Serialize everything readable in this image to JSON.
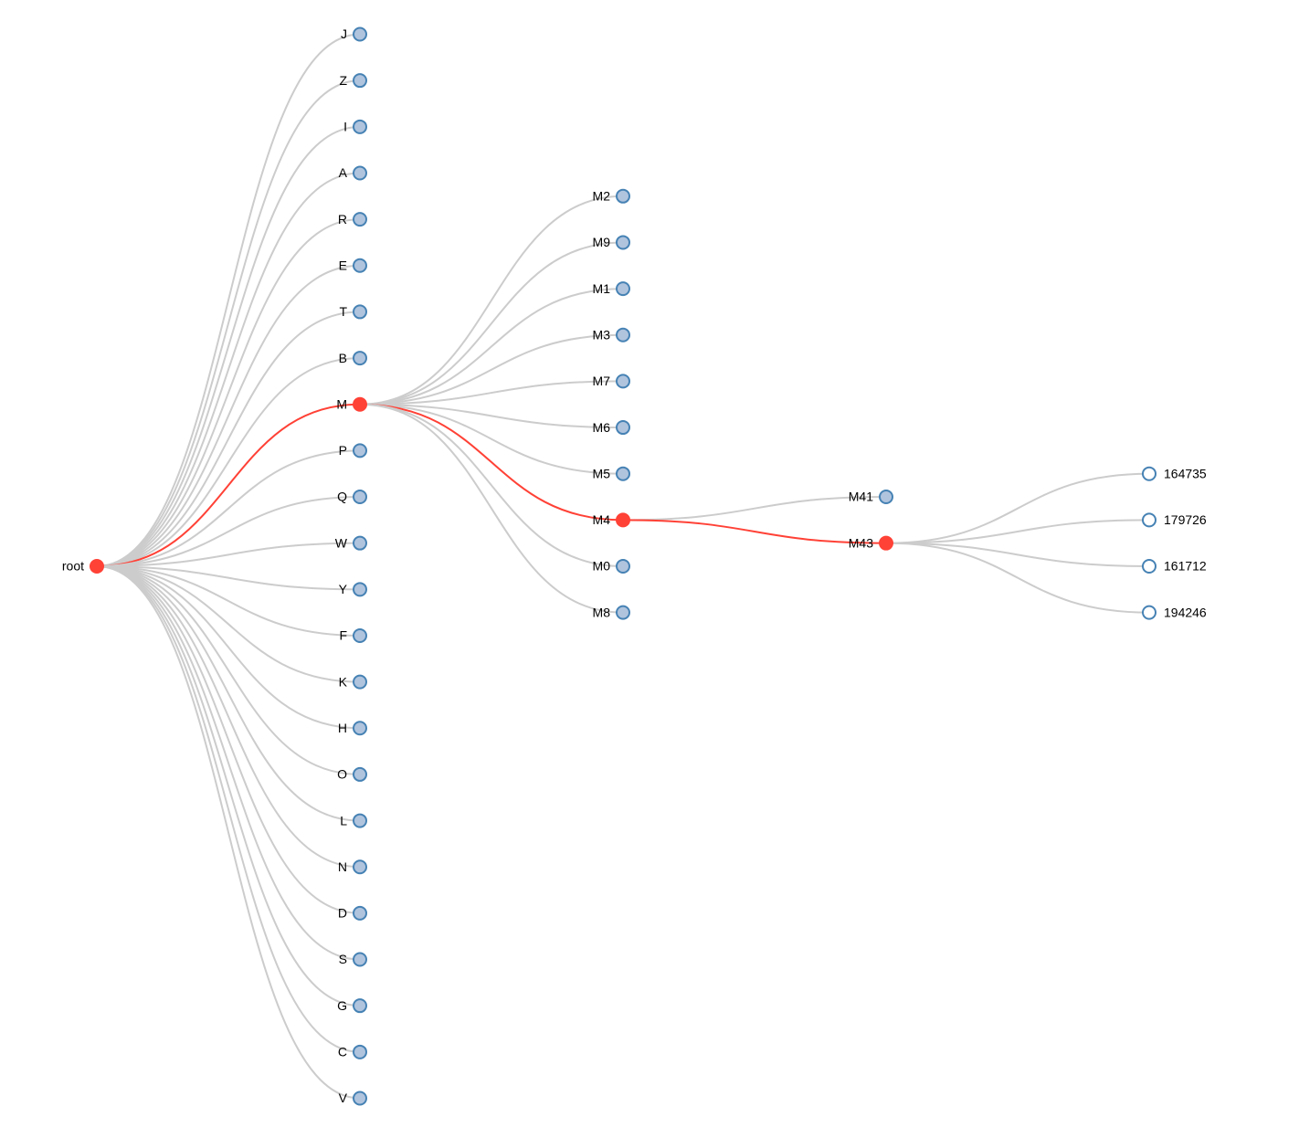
{
  "tree": {
    "label": "root",
    "children": [
      {
        "label": "J"
      },
      {
        "label": "Z"
      },
      {
        "label": "I"
      },
      {
        "label": "A"
      },
      {
        "label": "R"
      },
      {
        "label": "E"
      },
      {
        "label": "T"
      },
      {
        "label": "B"
      },
      {
        "label": "M",
        "children": [
          {
            "label": "M2"
          },
          {
            "label": "M9"
          },
          {
            "label": "M1"
          },
          {
            "label": "M3"
          },
          {
            "label": "M7"
          },
          {
            "label": "M6"
          },
          {
            "label": "M5"
          },
          {
            "label": "M4",
            "children": [
              {
                "label": "M41"
              },
              {
                "label": "M43",
                "children": [
                  {
                    "label": "164735"
                  },
                  {
                    "label": "179726"
                  },
                  {
                    "label": "161712"
                  },
                  {
                    "label": "194246"
                  }
                ]
              }
            ]
          },
          {
            "label": "M0"
          },
          {
            "label": "M8"
          }
        ]
      },
      {
        "label": "P"
      },
      {
        "label": "Q"
      },
      {
        "label": "W"
      },
      {
        "label": "Y"
      },
      {
        "label": "F"
      },
      {
        "label": "K"
      },
      {
        "label": "H"
      },
      {
        "label": "O"
      },
      {
        "label": "L"
      },
      {
        "label": "N"
      },
      {
        "label": "D"
      },
      {
        "label": "S"
      },
      {
        "label": "G"
      },
      {
        "label": "C"
      },
      {
        "label": "V"
      }
    ]
  }
}
